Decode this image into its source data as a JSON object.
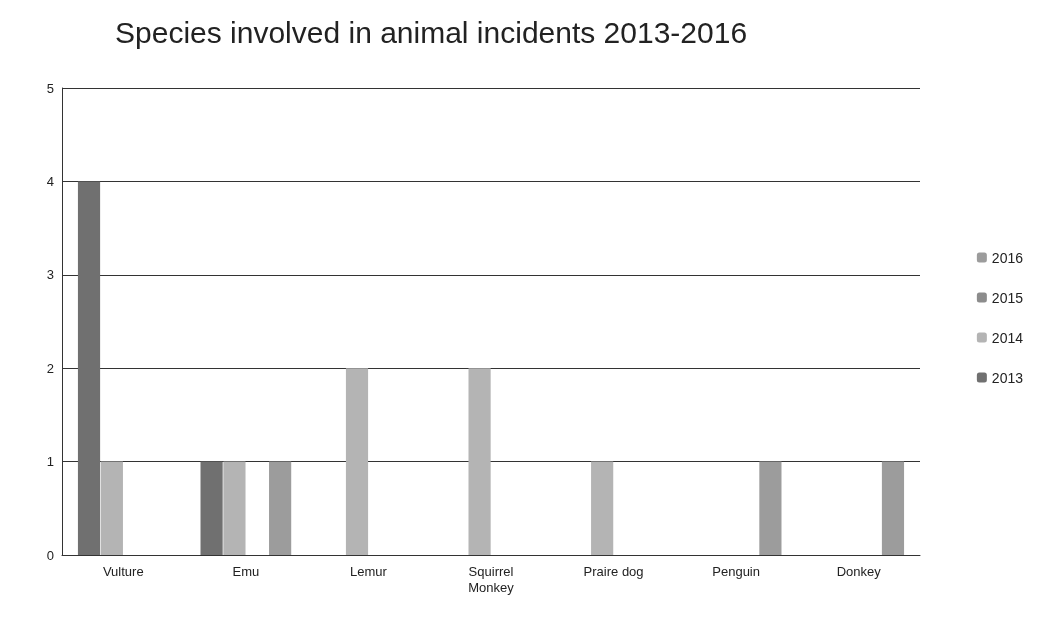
{
  "chart_data": {
    "type": "bar",
    "title": "Species involved in animal incidents 2013-2016",
    "categories": [
      "Vulture",
      "Emu",
      "Lemur",
      "Squirrel\nMonkey",
      "Praire dog",
      "Penguin",
      "Donkey"
    ],
    "series": [
      {
        "name": "2013",
        "color": "#707070",
        "values": [
          4,
          1,
          0,
          0,
          0,
          0,
          0
        ]
      },
      {
        "name": "2014",
        "color": "#b4b4b4",
        "values": [
          1,
          1,
          2,
          2,
          1,
          0,
          0
        ]
      },
      {
        "name": "2015",
        "color": "#8c8c8c",
        "values": [
          0,
          0,
          0,
          0,
          0,
          0,
          0
        ]
      },
      {
        "name": "2016",
        "color": "#9c9c9c",
        "values": [
          0,
          1,
          0,
          0,
          0,
          1,
          1
        ]
      }
    ],
    "ylim": [
      0,
      5
    ],
    "yticks": [
      0,
      1,
      2,
      3,
      4,
      5
    ],
    "grid": "y",
    "legend": "right"
  }
}
